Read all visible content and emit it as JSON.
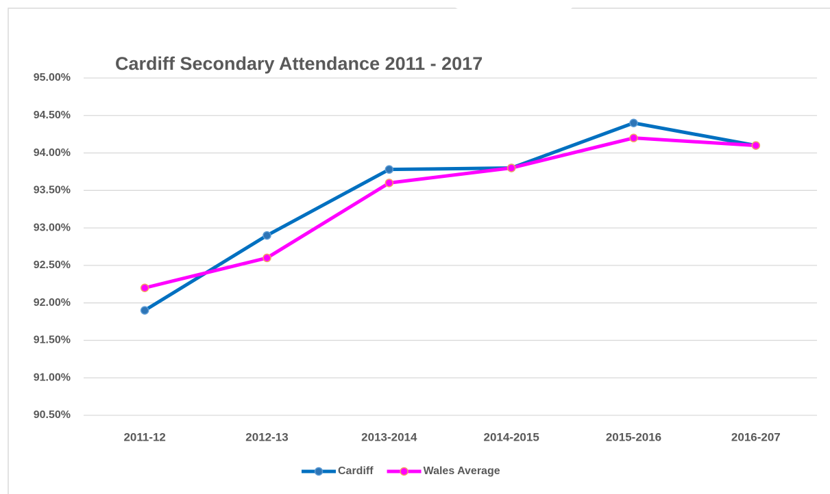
{
  "chart_data": {
    "type": "line",
    "title": "Cardiff Secondary Attendance 2011 - 2017",
    "categories": [
      "2011-12",
      "2012-13",
      "2013-2014",
      "2014-2015",
      "2015-2016",
      "2016-207"
    ],
    "series": [
      {
        "name": "Cardiff",
        "color": "#0070c0",
        "marker_color": "#2e75b6",
        "marker_edge": "#5b9bd5",
        "values": [
          91.9,
          92.9,
          93.78,
          93.8,
          94.4,
          94.1
        ]
      },
      {
        "name": "Wales Average",
        "color": "#ff00ff",
        "marker_color": "#ff00ff",
        "marker_edge": "#f4a261",
        "values": [
          92.2,
          92.6,
          93.6,
          93.8,
          94.2,
          94.1
        ]
      }
    ],
    "ylim": [
      90.5,
      95
    ],
    "yticks": [
      {
        "value": 90.5,
        "label": "90.50%"
      },
      {
        "value": 91,
        "label": "91.00%"
      },
      {
        "value": 91.5,
        "label": "91.50%"
      },
      {
        "value": 92,
        "label": "92.00%"
      },
      {
        "value": 92.5,
        "label": "92.50%"
      },
      {
        "value": 93,
        "label": "93.00%"
      },
      {
        "value": 93.5,
        "label": "93.50%"
      },
      {
        "value": 94,
        "label": "94.00%"
      },
      {
        "value": 94.5,
        "label": "94.50%"
      },
      {
        "value": 95,
        "label": "95.00%"
      }
    ],
    "grid": true,
    "legend": "bottom"
  }
}
